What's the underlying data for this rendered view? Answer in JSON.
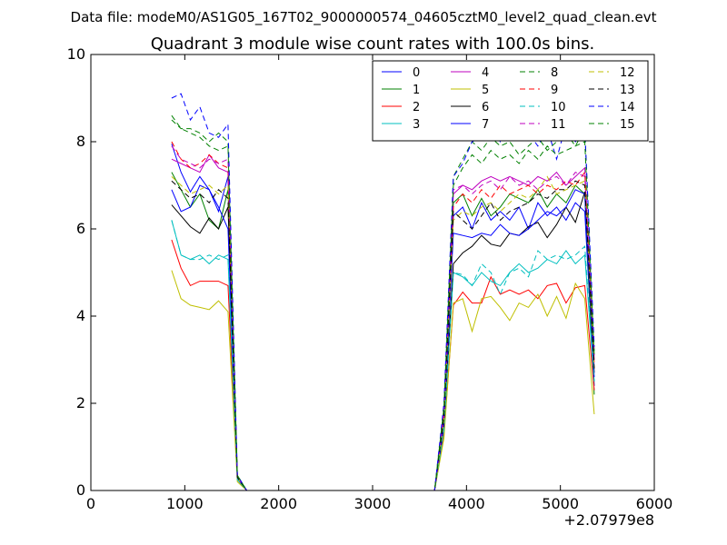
{
  "suptitle": "Data file: modeM0/AS1G05_167T02_9000000574_04605cztM0_level2_quad_clean.evt",
  "chart_data": {
    "type": "line",
    "title": "Quadrant 3 module wise count rates with 100.0s bins.",
    "xlabel": "",
    "ylabel": "",
    "xlim": [
      0,
      6000
    ],
    "ylim": [
      0,
      10
    ],
    "x_offset_label": "+2.07979e8",
    "x_ticks": [
      0,
      1000,
      2000,
      3000,
      4000,
      5000,
      6000
    ],
    "y_ticks": [
      0,
      2,
      4,
      6,
      8,
      10
    ],
    "x_tick_labels": [
      "0",
      "1000",
      "2000",
      "3000",
      "4000",
      "5000",
      "6000"
    ],
    "y_tick_labels": [
      "0",
      "2",
      "4",
      "6",
      "8",
      "10"
    ],
    "grid": false,
    "legend_position": "top-right",
    "legend_columns": 4,
    "x": [
      860,
      960,
      1060,
      1160,
      1260,
      1360,
      1460,
      1560,
      1660,
      1760,
      1860,
      1960,
      2060,
      2160,
      2260,
      2360,
      2460,
      2560,
      2660,
      2760,
      2860,
      2960,
      3060,
      3160,
      3260,
      3360,
      3460,
      3560,
      3660,
      3760,
      3860,
      3960,
      4060,
      4160,
      4260,
      4360,
      4460,
      4560,
      4660,
      4760,
      4860,
      4960,
      5060,
      5160,
      5260,
      5360
    ],
    "series": [
      {
        "name": "0",
        "color": "#0000ff",
        "dash": false,
        "values": [
          7.95,
          7.3,
          6.85,
          7.2,
          6.9,
          6.4,
          7.2,
          0.3,
          0,
          0,
          0,
          0,
          0,
          0,
          0,
          0,
          0,
          0,
          0,
          0,
          0,
          0,
          0,
          0,
          0,
          0,
          0,
          0,
          0,
          1.6,
          6.3,
          6.5,
          6.0,
          6.6,
          6.2,
          6.4,
          6.2,
          6.5,
          6.0,
          6.6,
          6.3,
          6.5,
          6.2,
          6.6,
          6.4,
          2.4
        ]
      },
      {
        "name": "1",
        "color": "#008000",
        "dash": false,
        "values": [
          7.3,
          6.9,
          6.5,
          6.8,
          6.2,
          6.0,
          6.9,
          0.3,
          0,
          0,
          0,
          0,
          0,
          0,
          0,
          0,
          0,
          0,
          0,
          0,
          0,
          0,
          0,
          0,
          0,
          0,
          0,
          0,
          0,
          1.6,
          6.6,
          6.8,
          6.3,
          6.7,
          6.3,
          6.5,
          6.8,
          6.7,
          6.6,
          6.9,
          6.5,
          6.8,
          6.6,
          7.0,
          6.8,
          2.2
        ]
      },
      {
        "name": "2",
        "color": "#ff0000",
        "dash": false,
        "values": [
          5.75,
          5.1,
          4.7,
          4.8,
          4.8,
          4.8,
          4.7,
          0.25,
          0,
          0,
          0,
          0,
          0,
          0,
          0,
          0,
          0,
          0,
          0,
          0,
          0,
          0,
          0,
          0,
          0,
          0,
          0,
          0,
          0,
          1.3,
          4.25,
          4.55,
          4.3,
          4.3,
          4.9,
          4.5,
          4.6,
          4.5,
          4.6,
          4.4,
          4.7,
          4.75,
          4.3,
          4.65,
          4.7,
          2.3
        ]
      },
      {
        "name": "3",
        "color": "#00bfbf",
        "dash": false,
        "values": [
          6.2,
          5.4,
          5.3,
          5.4,
          5.2,
          5.4,
          5.3,
          0.25,
          0,
          0,
          0,
          0,
          0,
          0,
          0,
          0,
          0,
          0,
          0,
          0,
          0,
          0,
          0,
          0,
          0,
          0,
          0,
          0,
          0,
          1.4,
          5.0,
          4.9,
          4.7,
          5.0,
          4.8,
          4.7,
          5.0,
          5.2,
          5.0,
          5.1,
          5.3,
          5.2,
          5.5,
          5.2,
          5.4,
          2.5
        ]
      },
      {
        "name": "4",
        "color": "#bf00bf",
        "dash": false,
        "values": [
          7.6,
          7.5,
          7.4,
          7.3,
          7.7,
          7.4,
          7.3,
          0.3,
          0,
          0,
          0,
          0,
          0,
          0,
          0,
          0,
          0,
          0,
          0,
          0,
          0,
          0,
          0,
          0,
          0,
          0,
          0,
          0,
          0,
          1.8,
          6.8,
          7.0,
          6.9,
          7.1,
          7.2,
          7.1,
          7.2,
          7.1,
          7.0,
          7.2,
          7.1,
          7.3,
          7.0,
          7.2,
          7.4,
          3.0
        ]
      },
      {
        "name": "5",
        "color": "#bfbf00",
        "dash": false,
        "values": [
          5.05,
          4.4,
          4.25,
          4.2,
          4.15,
          4.35,
          4.1,
          0.2,
          0,
          0,
          0,
          0,
          0,
          0,
          0,
          0,
          0,
          0,
          0,
          0,
          0,
          0,
          0,
          0,
          0,
          0,
          0,
          0,
          0,
          1.2,
          4.3,
          4.4,
          3.65,
          4.4,
          4.45,
          4.2,
          3.9,
          4.3,
          4.2,
          4.5,
          4.0,
          4.45,
          3.95,
          4.75,
          4.4,
          1.75
        ]
      },
      {
        "name": "6",
        "color": "#000000",
        "dash": false,
        "values": [
          6.55,
          6.3,
          6.05,
          5.9,
          6.25,
          6.0,
          6.5,
          0.3,
          0,
          0,
          0,
          0,
          0,
          0,
          0,
          0,
          0,
          0,
          0,
          0,
          0,
          0,
          0,
          0,
          0,
          0,
          0,
          0,
          0,
          1.5,
          5.2,
          5.45,
          5.6,
          5.85,
          5.65,
          5.6,
          5.9,
          5.85,
          6.05,
          6.15,
          5.8,
          6.1,
          6.5,
          6.15,
          6.85,
          2.7
        ]
      },
      {
        "name": "7",
        "color": "#0000ff",
        "dash": false,
        "values": [
          6.9,
          6.4,
          6.5,
          7.0,
          6.9,
          6.5,
          6.0,
          0.3,
          0,
          0,
          0,
          0,
          0,
          0,
          0,
          0,
          0,
          0,
          0,
          0,
          0,
          0,
          0,
          0,
          0,
          0,
          0,
          0,
          0,
          1.5,
          5.9,
          5.85,
          5.8,
          5.9,
          5.85,
          6.1,
          5.9,
          5.85,
          6.0,
          6.2,
          6.4,
          6.3,
          6.5,
          6.9,
          6.8,
          2.6
        ]
      },
      {
        "name": "8",
        "color": "#008000",
        "dash": true,
        "values": [
          8.5,
          8.3,
          8.3,
          8.2,
          8.0,
          8.2,
          8.0,
          0.35,
          0,
          0,
          0,
          0,
          0,
          0,
          0,
          0,
          0,
          0,
          0,
          0,
          0,
          0,
          0,
          0,
          0,
          0,
          0,
          0,
          0,
          1.8,
          7.2,
          7.6,
          8.0,
          7.8,
          8.1,
          7.9,
          8.0,
          7.7,
          7.9,
          8.1,
          7.8,
          8.0,
          8.2,
          7.9,
          8.3,
          3.2
        ]
      },
      {
        "name": "9",
        "color": "#ff0000",
        "dash": true,
        "values": [
          8.0,
          7.6,
          7.4,
          7.5,
          7.7,
          7.5,
          7.4,
          0.3,
          0,
          0,
          0,
          0,
          0,
          0,
          0,
          0,
          0,
          0,
          0,
          0,
          0,
          0,
          0,
          0,
          0,
          0,
          0,
          0,
          0,
          1.7,
          6.5,
          6.8,
          6.6,
          6.9,
          6.7,
          7.0,
          6.8,
          6.9,
          7.0,
          6.8,
          7.0,
          6.9,
          7.1,
          7.0,
          7.3,
          2.9
        ]
      },
      {
        "name": "10",
        "color": "#00bfbf",
        "dash": true,
        "values": [
          6.2,
          5.4,
          5.3,
          5.3,
          5.4,
          5.3,
          5.4,
          0.25,
          0,
          0,
          0,
          0,
          0,
          0,
          0,
          0,
          0,
          0,
          0,
          0,
          0,
          0,
          0,
          0,
          0,
          0,
          0,
          0,
          0,
          1.4,
          5.0,
          4.95,
          4.7,
          5.2,
          5.0,
          4.5,
          5.0,
          5.1,
          4.9,
          5.5,
          5.3,
          5.4,
          5.3,
          5.4,
          5.6,
          2.5
        ]
      },
      {
        "name": "11",
        "color": "#bf00bf",
        "dash": true,
        "values": [
          7.9,
          7.6,
          7.5,
          7.4,
          7.6,
          7.5,
          7.6,
          0.3,
          0,
          0,
          0,
          0,
          0,
          0,
          0,
          0,
          0,
          0,
          0,
          0,
          0,
          0,
          0,
          0,
          0,
          0,
          0,
          0,
          0,
          1.8,
          6.9,
          7.0,
          6.8,
          7.0,
          7.1,
          6.9,
          7.2,
          7.0,
          7.1,
          6.9,
          7.1,
          7.2,
          7.0,
          7.3,
          7.2,
          3.1
        ]
      },
      {
        "name": "12",
        "color": "#bfbf00",
        "dash": true,
        "values": [
          7.2,
          7.0,
          6.8,
          6.9,
          7.0,
          6.8,
          7.0,
          0.3,
          0,
          0,
          0,
          0,
          0,
          0,
          0,
          0,
          0,
          0,
          0,
          0,
          0,
          0,
          0,
          0,
          0,
          0,
          0,
          0,
          0,
          1.6,
          6.2,
          6.4,
          6.3,
          6.5,
          6.6,
          6.4,
          6.6,
          6.8,
          6.7,
          6.9,
          7.2,
          6.8,
          6.9,
          7.0,
          7.1,
          2.8
        ]
      },
      {
        "name": "13",
        "color": "#000000",
        "dash": true,
        "values": [
          7.1,
          6.9,
          6.7,
          6.8,
          6.6,
          6.9,
          6.7,
          0.3,
          0,
          0,
          0,
          0,
          0,
          0,
          0,
          0,
          0,
          0,
          0,
          0,
          0,
          0,
          0,
          0,
          0,
          0,
          0,
          0,
          0,
          1.7,
          6.4,
          6.2,
          6.0,
          6.3,
          6.6,
          6.2,
          6.4,
          6.5,
          6.6,
          6.8,
          6.7,
          6.9,
          6.9,
          7.1,
          7.0,
          2.8
        ]
      },
      {
        "name": "14",
        "color": "#0000ff",
        "dash": true,
        "values": [
          9.0,
          9.1,
          8.5,
          8.8,
          8.2,
          8.1,
          8.4,
          0.35,
          0,
          0,
          0,
          0,
          0,
          0,
          0,
          0,
          0,
          0,
          0,
          0,
          0,
          0,
          0,
          0,
          0,
          0,
          0,
          0,
          0,
          2.0,
          7.2,
          7.5,
          8.0,
          8.1,
          8.3,
          8.0,
          8.5,
          8.4,
          8.2,
          7.9,
          8.3,
          7.6,
          8.4,
          8.0,
          8.3,
          3.3
        ]
      },
      {
        "name": "15",
        "color": "#008000",
        "dash": true,
        "values": [
          8.6,
          8.3,
          8.2,
          8.1,
          7.9,
          7.8,
          7.9,
          0.35,
          0,
          0,
          0,
          0,
          0,
          0,
          0,
          0,
          0,
          0,
          0,
          0,
          0,
          0,
          0,
          0,
          0,
          0,
          0,
          0,
          0,
          1.9,
          7.0,
          7.4,
          7.7,
          7.5,
          7.8,
          7.6,
          7.7,
          7.5,
          7.8,
          7.6,
          7.9,
          7.7,
          7.8,
          7.9,
          8.0,
          3.1
        ]
      }
    ]
  }
}
